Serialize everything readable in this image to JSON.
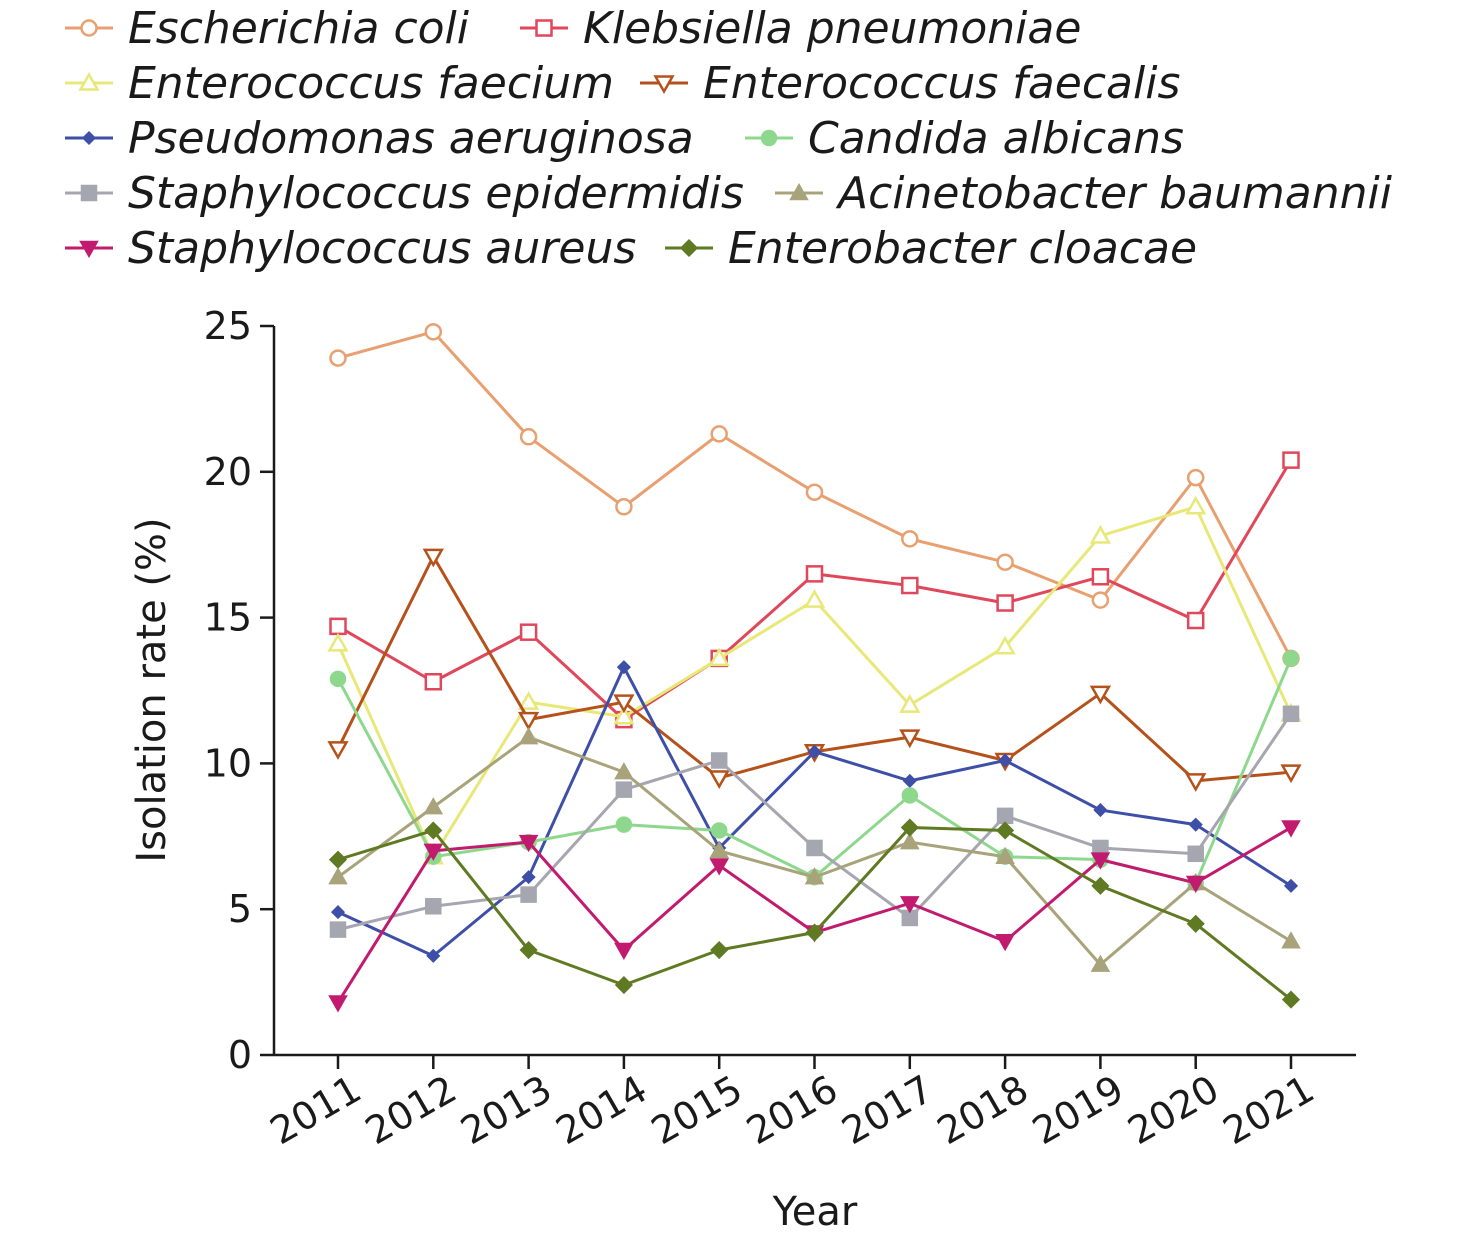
{
  "chart_data": {
    "type": "line",
    "title": "",
    "xlabel": "Year",
    "ylabel": "Isolation rate (%)",
    "ylim": [
      0,
      25
    ],
    "yticks": [
      0,
      5,
      10,
      15,
      20,
      25
    ],
    "grid": false,
    "legend_position": "top",
    "categories": [
      "2011",
      "2012",
      "2013",
      "2014",
      "2015",
      "2016",
      "2017",
      "2018",
      "2019",
      "2020",
      "2021"
    ],
    "series": [
      {
        "name": "Escherichia coli",
        "color": "#E8A070",
        "marker": "circle-open",
        "values": [
          23.9,
          24.8,
          21.2,
          18.8,
          21.3,
          19.3,
          17.7,
          16.9,
          15.6,
          19.8,
          13.6
        ]
      },
      {
        "name": "Klebsiella pneumoniae",
        "color": "#E0475A",
        "marker": "square-open",
        "values": [
          14.7,
          12.8,
          14.5,
          11.5,
          13.6,
          16.5,
          16.1,
          15.5,
          16.4,
          14.9,
          20.4
        ]
      },
      {
        "name": "Enterococcus faecium",
        "color": "#E8E878",
        "marker": "triangle-up-open",
        "values": [
          14.1,
          6.8,
          12.1,
          11.6,
          13.6,
          15.6,
          12.0,
          14.0,
          17.8,
          18.8,
          11.7
        ]
      },
      {
        "name": "Enterococcus faecalis",
        "color": "#B5511A",
        "marker": "triangle-down-open",
        "values": [
          10.5,
          17.1,
          11.5,
          12.1,
          9.5,
          10.4,
          10.9,
          10.1,
          12.4,
          9.4,
          9.7
        ]
      },
      {
        "name": "Pseudomonas aeruginosa",
        "color": "#3E4FA8",
        "marker": "diamond-small",
        "values": [
          4.9,
          3.4,
          6.1,
          13.3,
          7.1,
          10.4,
          9.4,
          10.1,
          8.4,
          7.9,
          5.8
        ]
      },
      {
        "name": "Candida albicans",
        "color": "#8ED88E",
        "marker": "circle",
        "values": [
          12.9,
          6.8,
          7.3,
          7.9,
          7.7,
          6.1,
          8.9,
          6.8,
          6.7,
          5.9,
          13.6
        ]
      },
      {
        "name": "Staphylococcus epidermidis",
        "color": "#A6A6B0",
        "marker": "square",
        "values": [
          4.3,
          5.1,
          5.5,
          9.1,
          10.1,
          7.1,
          4.7,
          8.2,
          7.1,
          6.9,
          11.7
        ]
      },
      {
        "name": "Acinetobacter baumannii",
        "color": "#A8A37A",
        "marker": "triangle-up",
        "values": [
          6.1,
          8.5,
          10.9,
          9.7,
          7.0,
          6.1,
          7.3,
          6.8,
          3.1,
          5.9,
          3.9
        ]
      },
      {
        "name": "Staphylococcus aureus",
        "color": "#C21A6E",
        "marker": "triangle-down",
        "values": [
          1.8,
          7.0,
          7.3,
          3.6,
          6.5,
          4.2,
          5.2,
          3.9,
          6.7,
          5.9,
          7.8
        ]
      },
      {
        "name": "Enterobacter cloacae",
        "color": "#5F7A22",
        "marker": "diamond",
        "values": [
          6.7,
          7.7,
          3.6,
          2.4,
          3.6,
          4.2,
          7.8,
          7.7,
          5.8,
          4.5,
          1.9
        ]
      }
    ]
  }
}
